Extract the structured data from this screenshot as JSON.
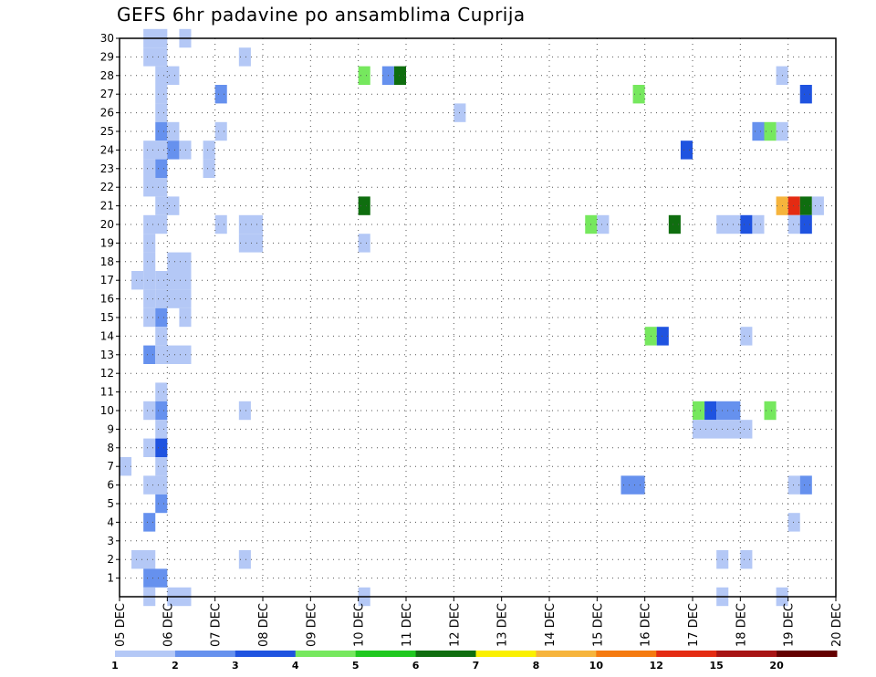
{
  "chart_data": {
    "type": "heatmap",
    "title": "GEFS 6hr padavine po ansamblima Cuprija",
    "xlabel": "",
    "ylabel": "",
    "x_tick_labels": [
      "05 DEC",
      "06 DEC",
      "07 DEC",
      "08 DEC",
      "09 DEC",
      "10 DEC",
      "11 DEC",
      "12 DEC",
      "13 DEC",
      "14 DEC",
      "15 DEC",
      "16 DEC",
      "17 DEC",
      "18 DEC",
      "19 DEC",
      "20 DEC"
    ],
    "y_tick_labels": [
      "1",
      "2",
      "3",
      "4",
      "5",
      "6",
      "7",
      "8",
      "9",
      "10",
      "11",
      "12",
      "13",
      "14",
      "15",
      "16",
      "17",
      "18",
      "19",
      "20",
      "21",
      "22",
      "23",
      "24",
      "25",
      "26",
      "27",
      "28",
      "29",
      "30"
    ],
    "xlim_days": [
      0,
      15
    ],
    "ylim_members": [
      0,
      30
    ],
    "time_step_days": 0.25,
    "color_scale": {
      "levels": [
        1,
        2,
        3,
        4,
        5,
        6,
        7,
        8,
        10,
        12,
        15,
        20
      ],
      "colors": [
        "#b4c8f6",
        "#6691ee",
        "#1f53e0",
        "#76e85e",
        "#1fc81f",
        "#0f6e0f",
        "#faf000",
        "#f6b43c",
        "#f57a10",
        "#e42b12",
        "#a81414",
        "#640000"
      ]
    },
    "cells": [
      {
        "member": 30,
        "start": 0.5,
        "end": 1.0,
        "bin": 1
      },
      {
        "member": 30,
        "start": 1.25,
        "end": 1.5,
        "bin": 1
      },
      {
        "member": 29,
        "start": 0.5,
        "end": 1.0,
        "bin": 1
      },
      {
        "member": 29,
        "start": 2.5,
        "end": 2.75,
        "bin": 1
      },
      {
        "member": 28,
        "start": 0.75,
        "end": 1.25,
        "bin": 1
      },
      {
        "member": 28,
        "start": 5.0,
        "end": 5.25,
        "bin": 4
      },
      {
        "member": 28,
        "start": 5.5,
        "end": 5.75,
        "bin": 2
      },
      {
        "member": 28,
        "start": 5.75,
        "end": 6.0,
        "bin": 6
      },
      {
        "member": 28,
        "start": 13.75,
        "end": 14.0,
        "bin": 1
      },
      {
        "member": 27,
        "start": 0.75,
        "end": 1.0,
        "bin": 1
      },
      {
        "member": 27,
        "start": 2.0,
        "end": 2.25,
        "bin": 2
      },
      {
        "member": 27,
        "start": 10.75,
        "end": 11.0,
        "bin": 4
      },
      {
        "member": 27,
        "start": 14.25,
        "end": 14.5,
        "bin": 3
      },
      {
        "member": 26,
        "start": 0.75,
        "end": 1.0,
        "bin": 1
      },
      {
        "member": 26,
        "start": 7.0,
        "end": 7.25,
        "bin": 1
      },
      {
        "member": 25,
        "start": 0.75,
        "end": 1.0,
        "bin": 2
      },
      {
        "member": 25,
        "start": 1.0,
        "end": 1.25,
        "bin": 1
      },
      {
        "member": 25,
        "start": 2.0,
        "end": 2.25,
        "bin": 1
      },
      {
        "member": 25,
        "start": 13.25,
        "end": 13.5,
        "bin": 2
      },
      {
        "member": 25,
        "start": 13.5,
        "end": 13.75,
        "bin": 4
      },
      {
        "member": 25,
        "start": 13.75,
        "end": 14.0,
        "bin": 1
      },
      {
        "member": 24,
        "start": 0.5,
        "end": 1.0,
        "bin": 1
      },
      {
        "member": 24,
        "start": 1.0,
        "end": 1.25,
        "bin": 2
      },
      {
        "member": 24,
        "start": 1.25,
        "end": 1.5,
        "bin": 1
      },
      {
        "member": 24,
        "start": 1.75,
        "end": 2.0,
        "bin": 1
      },
      {
        "member": 24,
        "start": 11.75,
        "end": 12.0,
        "bin": 3
      },
      {
        "member": 23,
        "start": 0.5,
        "end": 0.75,
        "bin": 1
      },
      {
        "member": 23,
        "start": 0.75,
        "end": 1.0,
        "bin": 2
      },
      {
        "member": 23,
        "start": 1.75,
        "end": 2.0,
        "bin": 1
      },
      {
        "member": 22,
        "start": 0.5,
        "end": 1.0,
        "bin": 1
      },
      {
        "member": 21,
        "start": 0.75,
        "end": 1.25,
        "bin": 1
      },
      {
        "member": 21,
        "start": 5.0,
        "end": 5.25,
        "bin": 6
      },
      {
        "member": 21,
        "start": 13.75,
        "end": 14.0,
        "bin": 8
      },
      {
        "member": 21,
        "start": 14.0,
        "end": 14.25,
        "bin": 10
      },
      {
        "member": 21,
        "start": 14.25,
        "end": 14.5,
        "bin": 6
      },
      {
        "member": 21,
        "start": 14.5,
        "end": 14.75,
        "bin": 1
      },
      {
        "member": 20,
        "start": 0.5,
        "end": 1.0,
        "bin": 1
      },
      {
        "member": 20,
        "start": 2.0,
        "end": 2.25,
        "bin": 1
      },
      {
        "member": 20,
        "start": 2.5,
        "end": 3.0,
        "bin": 1
      },
      {
        "member": 20,
        "start": 9.75,
        "end": 10.0,
        "bin": 4
      },
      {
        "member": 20,
        "start": 10.0,
        "end": 10.25,
        "bin": 1
      },
      {
        "member": 20,
        "start": 11.5,
        "end": 11.75,
        "bin": 6
      },
      {
        "member": 20,
        "start": 12.5,
        "end": 13.0,
        "bin": 1
      },
      {
        "member": 20,
        "start": 13.0,
        "end": 13.25,
        "bin": 3
      },
      {
        "member": 20,
        "start": 13.25,
        "end": 13.5,
        "bin": 1
      },
      {
        "member": 20,
        "start": 14.0,
        "end": 14.25,
        "bin": 1
      },
      {
        "member": 20,
        "start": 14.25,
        "end": 14.5,
        "bin": 3
      },
      {
        "member": 19,
        "start": 0.5,
        "end": 0.75,
        "bin": 1
      },
      {
        "member": 19,
        "start": 2.5,
        "end": 3.0,
        "bin": 1
      },
      {
        "member": 19,
        "start": 5.0,
        "end": 5.25,
        "bin": 1
      },
      {
        "member": 18,
        "start": 0.5,
        "end": 0.75,
        "bin": 1
      },
      {
        "member": 18,
        "start": 1.0,
        "end": 1.5,
        "bin": 1
      },
      {
        "member": 17,
        "start": 0.25,
        "end": 0.5,
        "bin": 1
      },
      {
        "member": 17,
        "start": 0.5,
        "end": 0.75,
        "bin": 1
      },
      {
        "member": 17,
        "start": 0.75,
        "end": 1.5,
        "bin": 1
      },
      {
        "member": 16,
        "start": 0.5,
        "end": 0.75,
        "bin": 1
      },
      {
        "member": 16,
        "start": 0.75,
        "end": 1.5,
        "bin": 1
      },
      {
        "member": 15,
        "start": 0.5,
        "end": 0.75,
        "bin": 1
      },
      {
        "member": 15,
        "start": 0.75,
        "end": 1.0,
        "bin": 2
      },
      {
        "member": 15,
        "start": 1.25,
        "end": 1.5,
        "bin": 1
      },
      {
        "member": 14,
        "start": 0.75,
        "end": 1.0,
        "bin": 1
      },
      {
        "member": 14,
        "start": 11.0,
        "end": 11.25,
        "bin": 4
      },
      {
        "member": 14,
        "start": 11.25,
        "end": 11.5,
        "bin": 3
      },
      {
        "member": 14,
        "start": 13.0,
        "end": 13.25,
        "bin": 1
      },
      {
        "member": 13,
        "start": 0.5,
        "end": 0.75,
        "bin": 2
      },
      {
        "member": 13,
        "start": 0.75,
        "end": 1.5,
        "bin": 1
      },
      {
        "member": 11,
        "start": 0.75,
        "end": 1.0,
        "bin": 1
      },
      {
        "member": 10,
        "start": 0.5,
        "end": 0.75,
        "bin": 1
      },
      {
        "member": 10,
        "start": 0.75,
        "end": 1.0,
        "bin": 2
      },
      {
        "member": 10,
        "start": 2.5,
        "end": 2.75,
        "bin": 1
      },
      {
        "member": 10,
        "start": 12.0,
        "end": 12.25,
        "bin": 4
      },
      {
        "member": 10,
        "start": 12.25,
        "end": 12.5,
        "bin": 3
      },
      {
        "member": 10,
        "start": 12.5,
        "end": 13.0,
        "bin": 2
      },
      {
        "member": 10,
        "start": 13.5,
        "end": 13.75,
        "bin": 4
      },
      {
        "member": 9,
        "start": 0.75,
        "end": 1.0,
        "bin": 1
      },
      {
        "member": 9,
        "start": 12.0,
        "end": 13.25,
        "bin": 1
      },
      {
        "member": 8,
        "start": 0.5,
        "end": 0.75,
        "bin": 1
      },
      {
        "member": 8,
        "start": 0.75,
        "end": 1.0,
        "bin": 3
      },
      {
        "member": 7,
        "start": 0.0,
        "end": 0.25,
        "bin": 1
      },
      {
        "member": 7,
        "start": 0.75,
        "end": 1.0,
        "bin": 1
      },
      {
        "member": 6,
        "start": 0.5,
        "end": 1.0,
        "bin": 1
      },
      {
        "member": 6,
        "start": 10.5,
        "end": 11.0,
        "bin": 2
      },
      {
        "member": 6,
        "start": 14.0,
        "end": 14.25,
        "bin": 1
      },
      {
        "member": 6,
        "start": 14.25,
        "end": 14.5,
        "bin": 2
      },
      {
        "member": 5,
        "start": 0.75,
        "end": 1.0,
        "bin": 2
      },
      {
        "member": 4,
        "start": 0.5,
        "end": 0.75,
        "bin": 2
      },
      {
        "member": 4,
        "start": 14.0,
        "end": 14.25,
        "bin": 1
      },
      {
        "member": 2,
        "start": 0.25,
        "end": 0.75,
        "bin": 1
      },
      {
        "member": 2,
        "start": 2.5,
        "end": 2.75,
        "bin": 1
      },
      {
        "member": 2,
        "start": 12.5,
        "end": 12.75,
        "bin": 1
      },
      {
        "member": 2,
        "start": 13.0,
        "end": 13.25,
        "bin": 1
      },
      {
        "member": 1,
        "start": 0.5,
        "end": 1.0,
        "bin": 2
      },
      {
        "member": 0,
        "start": 0.5,
        "end": 0.75,
        "bin": 1
      },
      {
        "member": 0,
        "start": 1.0,
        "end": 1.5,
        "bin": 1
      },
      {
        "member": 0,
        "start": 5.0,
        "end": 5.25,
        "bin": 1
      },
      {
        "member": 0,
        "start": 12.5,
        "end": 12.75,
        "bin": 1
      },
      {
        "member": 0,
        "start": 13.75,
        "end": 14.0,
        "bin": 1
      }
    ]
  }
}
